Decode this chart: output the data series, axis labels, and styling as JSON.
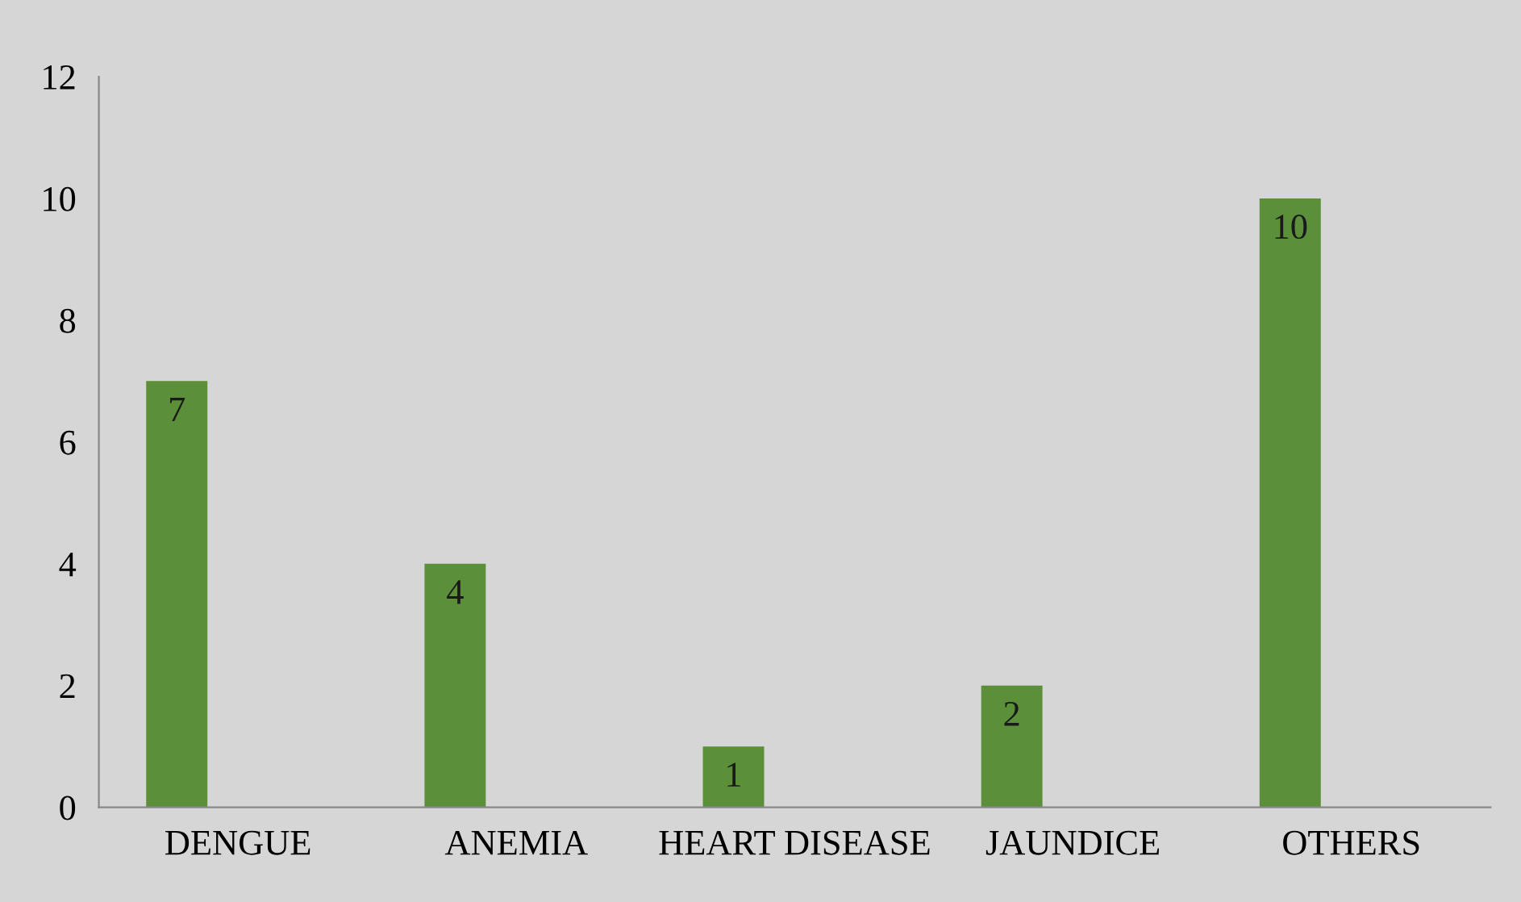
{
  "chart_data": {
    "type": "bar",
    "categories": [
      "DENGUE",
      "ANEMIA",
      "HEART DISEASE",
      "JAUNDICE",
      "OTHERS"
    ],
    "values": [
      7,
      4,
      1,
      2,
      10
    ],
    "color": "#5b8f3a",
    "ylim": [
      0,
      12
    ],
    "yticks": [
      0,
      2,
      4,
      6,
      8,
      10,
      12
    ],
    "grid": false,
    "data_labels": true
  }
}
